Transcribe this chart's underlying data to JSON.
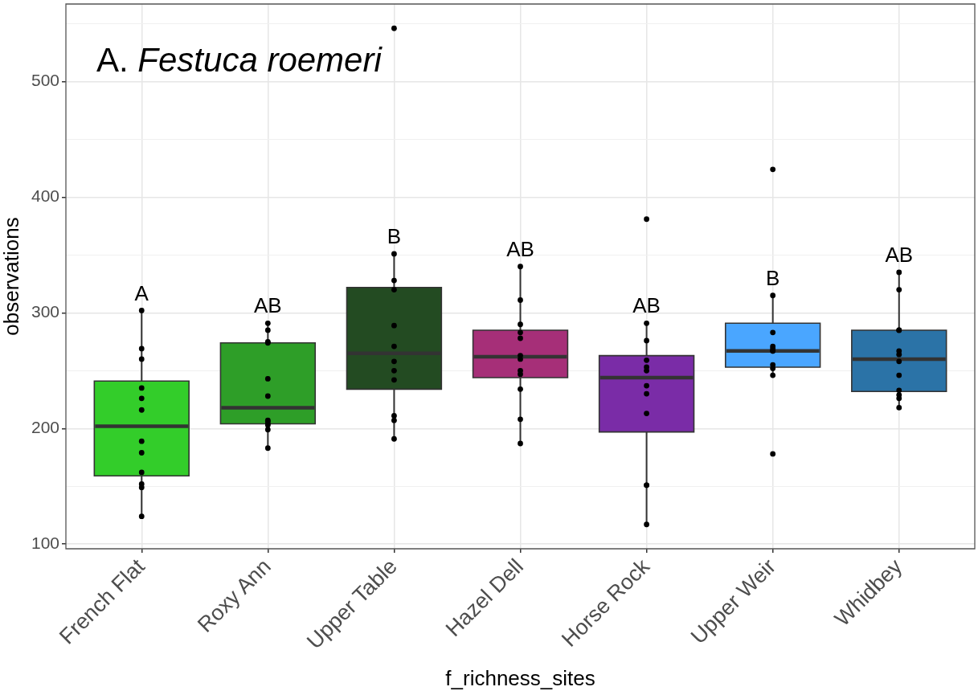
{
  "chart_data": {
    "type": "box",
    "title": "A. Festuca roemeri",
    "xlabel": "f_richness_sites",
    "ylabel": "observations",
    "categories": [
      "French Flat",
      "Roxy Ann",
      "Upper Table",
      "Hazel Dell",
      "Horse Rock",
      "Upper Weir",
      "Whidbey"
    ],
    "colors": [
      "#33cd2a",
      "#2e9e28",
      "#234b22",
      "#a62f78",
      "#7a2ca7",
      "#4aa6ff",
      "#2b73a7"
    ],
    "boxes": [
      {
        "low": 124,
        "q1": 159,
        "median": 202,
        "q3": 241,
        "high": 302
      },
      {
        "low": 183,
        "q1": 204,
        "median": 218,
        "q3": 274,
        "high": 291
      },
      {
        "low": 191,
        "q1": 234,
        "median": 265,
        "q3": 322,
        "high": 351,
        "outliers": [
          546
        ]
      },
      {
        "low": 187,
        "q1": 244,
        "median": 262,
        "q3": 285,
        "high": 340
      },
      {
        "low": 117,
        "q1": 197,
        "median": 244,
        "q3": 263,
        "high": 291,
        "outliers": [
          381
        ]
      },
      {
        "low": 246,
        "q1": 253,
        "median": 267,
        "q3": 291,
        "high": 315,
        "outliers": [
          424,
          178
        ]
      },
      {
        "low": 218,
        "q1": 232,
        "median": 260,
        "q3": 285,
        "high": 335
      }
    ],
    "series": [
      {
        "type": "scatter",
        "color": "#000000",
        "marker": "circle",
        "x": [
          "French Flat",
          "French Flat",
          "French Flat",
          "French Flat",
          "French Flat",
          "French Flat",
          "French Flat",
          "French Flat",
          "French Flat",
          "French Flat",
          "French Flat",
          "French Flat",
          "Roxy Ann",
          "Roxy Ann",
          "Roxy Ann",
          "Roxy Ann",
          "Roxy Ann",
          "Roxy Ann",
          "Roxy Ann",
          "Roxy Ann",
          "Roxy Ann",
          "Roxy Ann",
          "Roxy Ann",
          "Roxy Ann",
          "Upper Table",
          "Upper Table",
          "Upper Table",
          "Upper Table",
          "Upper Table",
          "Upper Table",
          "Upper Table",
          "Upper Table",
          "Upper Table",
          "Upper Table",
          "Upper Table",
          "Hazel Dell",
          "Hazel Dell",
          "Hazel Dell",
          "Hazel Dell",
          "Hazel Dell",
          "Hazel Dell",
          "Hazel Dell",
          "Hazel Dell",
          "Hazel Dell",
          "Hazel Dell",
          "Hazel Dell",
          "Hazel Dell",
          "Horse Rock",
          "Horse Rock",
          "Horse Rock",
          "Horse Rock",
          "Horse Rock",
          "Horse Rock",
          "Horse Rock",
          "Horse Rock",
          "Horse Rock",
          "Horse Rock",
          "Horse Rock",
          "Upper Weir",
          "Upper Weir",
          "Upper Weir",
          "Upper Weir",
          "Upper Weir",
          "Upper Weir",
          "Upper Weir",
          "Upper Weir",
          "Upper Weir",
          "Whidbey",
          "Whidbey",
          "Whidbey",
          "Whidbey",
          "Whidbey",
          "Whidbey",
          "Whidbey",
          "Whidbey",
          "Whidbey",
          "Whidbey",
          "Whidbey",
          "Whidbey"
        ],
        "values": [
          302,
          269,
          260,
          235,
          226,
          216,
          189,
          179,
          162,
          152,
          149,
          124,
          291,
          285,
          275,
          274,
          243,
          228,
          207,
          206,
          204,
          203,
          199,
          183,
          351,
          328,
          320,
          289,
          271,
          258,
          250,
          242,
          211,
          207,
          191,
          340,
          311,
          290,
          283,
          278,
          263,
          260,
          250,
          247,
          234,
          208,
          187,
          291,
          276,
          259,
          253,
          250,
          237,
          230,
          213,
          151,
          151,
          117,
          315,
          283,
          271,
          269,
          267,
          267,
          255,
          252,
          246,
          335,
          320,
          285,
          285,
          267,
          264,
          258,
          246,
          233,
          229,
          226,
          218
        ]
      }
    ],
    "annotations": [
      "A",
      "AB",
      "B",
      "AB",
      "AB",
      "B",
      "AB"
    ],
    "ylim": [
      96,
      567
    ],
    "yticks": [
      100,
      {
        "value": 150,
        "label": null
      },
      200,
      {
        "value": 250,
        "label": null
      },
      300,
      {
        "value": 350,
        "label": null
      },
      400,
      {
        "value": 450,
        "label": null
      },
      500,
      {
        "value": 550,
        "label": null
      }
    ],
    "grid": true
  }
}
